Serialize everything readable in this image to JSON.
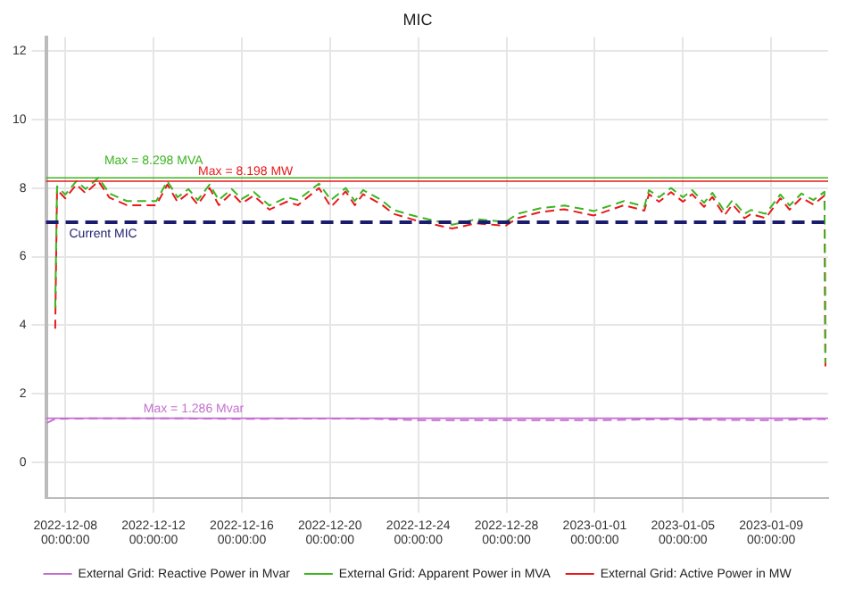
{
  "chart_data": {
    "type": "line",
    "title": "MIC",
    "xlim": [
      "2022-12-07T03:00",
      "2023-01-11T14:00"
    ],
    "xticks": [
      {
        "value": "2022-12-08",
        "label": "2022-12-08\n00:00:00"
      },
      {
        "value": "2022-12-12",
        "label": "2022-12-12\n00:00:00"
      },
      {
        "value": "2022-12-16",
        "label": "2022-12-16\n00:00:00"
      },
      {
        "value": "2022-12-20",
        "label": "2022-12-20\n00:00:00"
      },
      {
        "value": "2022-12-24",
        "label": "2022-12-24\n00:00:00"
      },
      {
        "value": "2022-12-28",
        "label": "2022-12-28\n00:00:00"
      },
      {
        "value": "2023-01-01",
        "label": "2023-01-01\n00:00:00"
      },
      {
        "value": "2023-01-05",
        "label": "2023-01-05\n00:00:00"
      },
      {
        "value": "2023-01-09",
        "label": "2023-01-09\n00:00:00"
      }
    ],
    "ylim": [
      -1.05,
      12.4
    ],
    "yticks": [
      0,
      2,
      4,
      6,
      8,
      10,
      12
    ],
    "grid": true,
    "legend": "bottom",
    "marker": "none",
    "line_style": "dashed",
    "series": [
      {
        "name": "External Grid: Reactive Power in Mvar",
        "color": "#c46fd0",
        "x": [
          "2022-12-07T04:00",
          "2022-12-07T13:00",
          "2022-12-09T00:00",
          "2022-12-12T15:00",
          "2022-12-16T00:00",
          "2022-12-20T00:00",
          "2022-12-22T00:00",
          "2022-12-24T00:00",
          "2022-12-28T00:00",
          "2023-01-01T00:00",
          "2023-01-04T00:00",
          "2023-01-07T00:00",
          "2023-01-09T00:00",
          "2023-01-11T10:00",
          "2023-01-11T11:00"
        ],
        "values": [
          1.15,
          1.27,
          1.28,
          1.286,
          1.27,
          1.28,
          1.27,
          1.23,
          1.23,
          1.23,
          1.26,
          1.24,
          1.23,
          1.27,
          1.15
        ]
      },
      {
        "name": "External Grid: Apparent Power in MVA",
        "color": "#3cb521",
        "x": [
          "2022-12-07T13:00",
          "2022-12-07T15:00",
          "2022-12-08T00:00",
          "2022-12-08T12:00",
          "2022-12-08T22:00",
          "2022-12-09T12:00",
          "2022-12-10T00:00",
          "2022-12-10T19:00",
          "2022-12-12T03:00",
          "2022-12-12T15:00",
          "2022-12-13T02:00",
          "2022-12-13T14:00",
          "2022-12-14T00:00",
          "2022-12-14T13:00",
          "2022-12-14T23:00",
          "2022-12-15T13:00",
          "2022-12-16T00:00",
          "2022-12-16T13:00",
          "2022-12-17T06:00",
          "2022-12-18T01:00",
          "2022-12-18T13:00",
          "2022-12-19T12:00",
          "2022-12-20T01:00",
          "2022-12-20T17:00",
          "2022-12-21T03:00",
          "2022-12-21T12:00",
          "2022-12-22T08:00",
          "2022-12-22T21:00",
          "2022-12-23T22:00",
          "2022-12-25T13:00",
          "2022-12-26T15:00",
          "2022-12-27T23:00",
          "2022-12-28T12:00",
          "2022-12-29T13:00",
          "2022-12-30T15:00",
          "2022-12-31T23:00",
          "2023-01-02T08:00",
          "2023-01-03T06:00",
          "2023-01-03T11:00",
          "2023-01-03T22:00",
          "2023-01-04T11:00",
          "2023-01-05T00:00",
          "2023-01-05T10:00",
          "2023-01-05T23:00",
          "2023-01-06T08:00",
          "2023-01-06T21:00",
          "2023-01-07T06:00",
          "2023-01-07T19:00",
          "2023-01-08T02:00",
          "2023-01-08T18:00",
          "2023-01-09T10:00",
          "2023-01-09T20:00",
          "2023-01-10T09:00",
          "2023-01-10T22:00",
          "2023-01-11T10:00",
          "2023-01-11T11:00"
        ],
        "values": [
          4.5,
          8.05,
          7.81,
          8.2,
          7.97,
          8.298,
          7.84,
          7.62,
          7.62,
          8.2,
          7.73,
          7.97,
          7.65,
          8.1,
          7.65,
          7.97,
          7.68,
          7.89,
          7.49,
          7.73,
          7.65,
          8.13,
          7.65,
          8.0,
          7.62,
          7.94,
          7.65,
          7.36,
          7.17,
          6.93,
          7.09,
          7.01,
          7.25,
          7.41,
          7.49,
          7.33,
          7.62,
          7.46,
          7.94,
          7.73,
          8.0,
          7.73,
          7.94,
          7.57,
          7.86,
          7.33,
          7.65,
          7.25,
          7.36,
          7.25,
          7.81,
          7.49,
          7.84,
          7.65,
          7.89,
          2.9
        ]
      },
      {
        "name": "External Grid: Active Power in MW",
        "color": "#e8191c",
        "x": [
          "2022-12-07T13:00",
          "2022-12-07T15:00",
          "2022-12-08T00:00",
          "2022-12-08T12:00",
          "2022-12-08T22:00",
          "2022-12-09T12:00",
          "2022-12-10T00:00",
          "2022-12-10T19:00",
          "2022-12-12T03:00",
          "2022-12-12T15:00",
          "2022-12-13T02:00",
          "2022-12-13T14:00",
          "2022-12-14T00:00",
          "2022-12-14T13:00",
          "2022-12-14T23:00",
          "2022-12-15T13:00",
          "2022-12-16T00:00",
          "2022-12-16T13:00",
          "2022-12-17T06:00",
          "2022-12-18T01:00",
          "2022-12-18T13:00",
          "2022-12-19T12:00",
          "2022-12-20T01:00",
          "2022-12-20T17:00",
          "2022-12-21T03:00",
          "2022-12-21T12:00",
          "2022-12-22T08:00",
          "2022-12-22T21:00",
          "2022-12-23T22:00",
          "2022-12-25T13:00",
          "2022-12-26T15:00",
          "2022-12-27T23:00",
          "2022-12-28T12:00",
          "2022-12-29T13:00",
          "2022-12-30T15:00",
          "2022-12-31T23:00",
          "2023-01-02T08:00",
          "2023-01-03T06:00",
          "2023-01-03T11:00",
          "2023-01-03T22:00",
          "2023-01-04T11:00",
          "2023-01-05T00:00",
          "2023-01-05T10:00",
          "2023-01-05T23:00",
          "2023-01-06T08:00",
          "2023-01-06T21:00",
          "2023-01-07T06:00",
          "2023-01-07T19:00",
          "2023-01-08T02:00",
          "2023-01-08T18:00",
          "2023-01-09T10:00",
          "2023-01-09T20:00",
          "2023-01-10T09:00",
          "2023-01-10T22:00",
          "2023-01-11T10:00",
          "2023-01-11T11:00"
        ],
        "values": [
          3.9,
          7.95,
          7.7,
          8.1,
          7.85,
          8.198,
          7.72,
          7.5,
          7.5,
          8.1,
          7.6,
          7.85,
          7.52,
          8.0,
          7.5,
          7.85,
          7.55,
          7.78,
          7.37,
          7.6,
          7.5,
          8.0,
          7.45,
          7.9,
          7.5,
          7.82,
          7.52,
          7.25,
          7.05,
          6.82,
          6.97,
          6.9,
          7.12,
          7.3,
          7.38,
          7.2,
          7.5,
          7.34,
          7.82,
          7.6,
          7.88,
          7.6,
          7.82,
          7.45,
          7.74,
          7.2,
          7.52,
          7.12,
          7.24,
          7.12,
          7.7,
          7.37,
          7.72,
          7.52,
          7.78,
          2.8
        ]
      }
    ],
    "ref_lines": [
      {
        "axis": "y",
        "value": 7,
        "label": "Current MIC",
        "color": "#1c1c6e",
        "line_style": "dashed"
      },
      {
        "axis": "y",
        "value": 8.298,
        "label": "Max = 8.298 MVA",
        "color": "#3cb521",
        "line_style": "solid"
      },
      {
        "axis": "y",
        "value": 8.198,
        "label": "Max = 8.198 MW",
        "color": "#e8191c",
        "line_style": "solid"
      },
      {
        "axis": "y",
        "value": 1.286,
        "label": "Max = 1.286 Mvar",
        "color": "#c46fd0",
        "line_style": "solid"
      }
    ]
  }
}
